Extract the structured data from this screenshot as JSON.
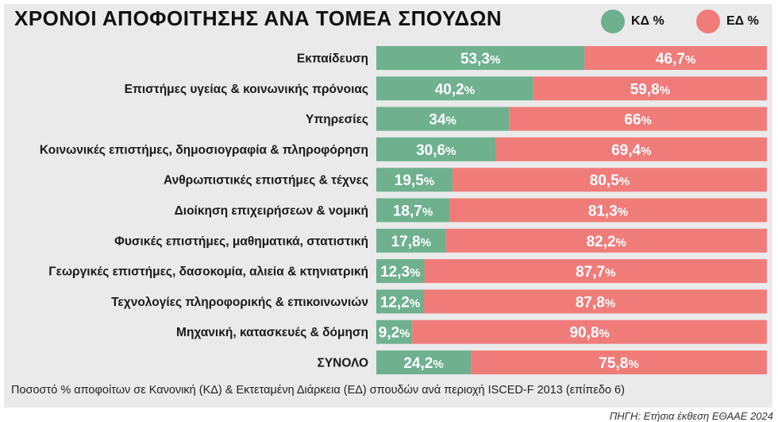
{
  "chart_data": {
    "type": "bar",
    "stacked": true,
    "orientation": "horizontal",
    "percent_of_total": true,
    "title": "ΧΡΟΝΟΙ ΑΠΟΦΟΙΤΗΣΗΣ ΑΝΑ ΤΟΜΕΑ ΣΠΟΥΔΩΝ",
    "footnote": "Ποσοστό % αποφοίτων σε Κανονική (ΚΔ) & Εκτεταμένη Διάρκεια (ΕΔ) σπουδών ανά περιοχή ISCED-F 2013 (επίπεδο 6)",
    "source": "ΠΗΓΗ: Ετήσια έκθεση ΕΘΑΑΕ 2024",
    "legend_position": "top-right",
    "xlim": [
      0,
      100
    ],
    "categories": [
      "Εκπαίδευση",
      "Επιστήμες υγείας & κοινωνικής πρόνοιας",
      "Υπηρεσίες",
      "Κοινωνικές επιστήμες, δημοσιογραφία & πληροφόρηση",
      "Ανθρωπιστικές επιστήμες & τέχνες",
      "Διοίκηση επιχειρήσεων & νομική",
      "Φυσικές επιστήμες, μαθηματικά, στατιστική",
      "Γεωργικές επιστήμες, δασοκομία, αλιεία & κτηνιατρική",
      "Τεχνολογίες πληροφορικής & επικοινωνιών",
      "Μηχανική, κατασκευές & δόμηση",
      "ΣΥΝΟΛΟ"
    ],
    "series": [
      {
        "name": "ΚΔ %",
        "color": "#6fb18f",
        "values": [
          53.3,
          40.2,
          34,
          30.6,
          19.5,
          18.7,
          17.8,
          12.3,
          12.2,
          9.2,
          24.2
        ],
        "labels": [
          "53,3",
          "40,2",
          "34",
          "30,6",
          "19,5",
          "18,7",
          "17,8",
          "12,3",
          "12,2",
          "9,2",
          "24,2"
        ]
      },
      {
        "name": "ΕΔ %",
        "color": "#f07c7a",
        "values": [
          46.7,
          59.8,
          66,
          69.4,
          80.5,
          81.3,
          82.2,
          87.7,
          87.8,
          90.8,
          75.8
        ],
        "labels": [
          "46,7",
          "59,8",
          "66",
          "69,4",
          "80,5",
          "81,3",
          "82,2",
          "87,7",
          "87,8",
          "90,8",
          "75,8"
        ]
      }
    ]
  }
}
